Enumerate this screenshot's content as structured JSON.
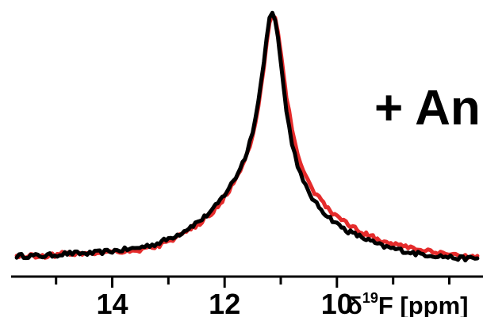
{
  "chart_data": {
    "type": "line",
    "xlabel": "δ19F [ppm]",
    "xlabel_parts": {
      "prefix": "δ",
      "sup": "19",
      "suffix": "F [ppm]"
    },
    "xlim": [
      15.8,
      7.4
    ],
    "x_reversed": true,
    "ylim": [
      0,
      1.02
    ],
    "x_ticks": [
      14,
      12,
      10
    ],
    "x_tick_labels": [
      "14",
      "12",
      "10"
    ],
    "annotation": "+ An",
    "series": [
      {
        "color": "#000000",
        "x": [
          15.7,
          15.2,
          14.8,
          14.4,
          14.0,
          13.6,
          13.2,
          13.0,
          12.8,
          12.6,
          12.4,
          12.2,
          12.0,
          11.8,
          11.6,
          11.5,
          11.4,
          11.3,
          11.25,
          11.2,
          11.15,
          11.1,
          11.05,
          11.0,
          10.95,
          10.9,
          10.8,
          10.7,
          10.6,
          10.4,
          10.2,
          10.0,
          9.8,
          9.6,
          9.4,
          9.2,
          9.0,
          8.6,
          8.2,
          7.8,
          7.5
        ],
        "values": [
          0.01,
          0.01,
          0.02,
          0.02,
          0.03,
          0.04,
          0.06,
          0.08,
          0.1,
          0.13,
          0.16,
          0.2,
          0.26,
          0.33,
          0.43,
          0.52,
          0.64,
          0.8,
          0.9,
          0.98,
          1.0,
          0.97,
          0.9,
          0.8,
          0.7,
          0.6,
          0.47,
          0.38,
          0.31,
          0.23,
          0.18,
          0.14,
          0.11,
          0.09,
          0.07,
          0.05,
          0.04,
          0.02,
          0.01,
          0.0,
          0.0
        ]
      },
      {
        "color": "#e52b2b",
        "x": [
          15.7,
          15.2,
          14.8,
          14.4,
          14.0,
          13.6,
          13.2,
          13.0,
          12.8,
          12.6,
          12.4,
          12.2,
          12.0,
          11.8,
          11.6,
          11.5,
          11.4,
          11.3,
          11.25,
          11.2,
          11.15,
          11.1,
          11.05,
          11.0,
          10.95,
          10.9,
          10.8,
          10.7,
          10.6,
          10.4,
          10.2,
          10.0,
          9.8,
          9.6,
          9.4,
          9.2,
          9.0,
          8.6,
          8.2,
          7.8,
          7.5
        ],
        "values": [
          0.01,
          0.01,
          0.02,
          0.02,
          0.03,
          0.03,
          0.05,
          0.07,
          0.09,
          0.12,
          0.15,
          0.19,
          0.25,
          0.32,
          0.42,
          0.5,
          0.62,
          0.78,
          0.88,
          0.96,
          0.99,
          0.98,
          0.92,
          0.84,
          0.75,
          0.66,
          0.53,
          0.43,
          0.36,
          0.27,
          0.21,
          0.17,
          0.14,
          0.11,
          0.09,
          0.07,
          0.06,
          0.04,
          0.02,
          0.01,
          0.01
        ]
      }
    ]
  }
}
